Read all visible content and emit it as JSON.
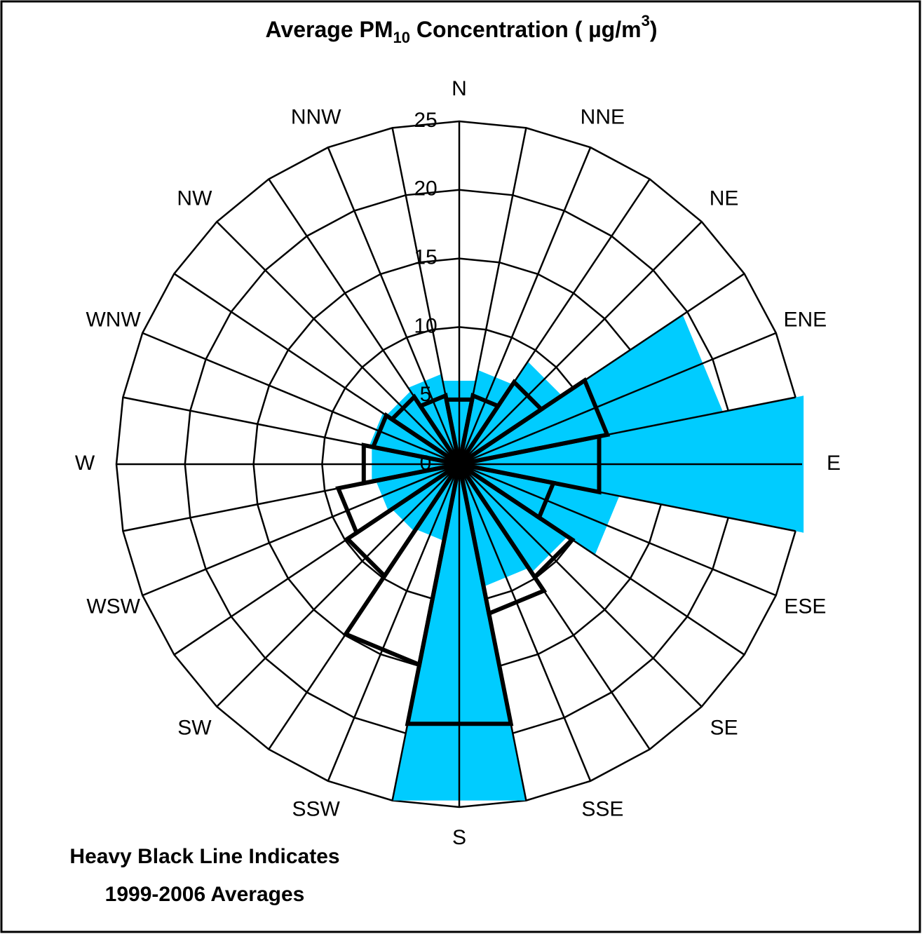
{
  "chart_data": {
    "type": "rose",
    "title": [
      "Average PM",
      "10",
      " Concentration ( µg/m",
      "3",
      ")"
    ],
    "annotation": [
      "Heavy Black Line Indicates",
      "1999-2006 Averages"
    ],
    "categories": [
      "N",
      "NNE",
      "NE",
      "ENE",
      "E",
      "ESE",
      "SE",
      "SSE",
      "S",
      "SSW",
      "SW",
      "WSW",
      "W",
      "WNW",
      "NW",
      "NNW"
    ],
    "series": [
      {
        "color": "#00ccff",
        "fill": true,
        "values": [
          6.2,
          7.0,
          9.0,
          19.6,
          25.6,
          11.9,
          9.5,
          9.1,
          25.0,
          5.7,
          5.9,
          6.2,
          6.5,
          6.7,
          6.4,
          6.7
        ]
      },
      {
        "color": "#000000",
        "fill": false,
        "values": [
          4.8,
          5.1,
          7.2,
          11.0,
          10.4,
          7.0,
          9.9,
          11.1,
          19.3,
          14.9,
          9.8,
          9.0,
          7.1,
          6.4,
          5.9,
          5.1
        ]
      }
    ],
    "rlim": [
      0,
      25
    ],
    "rticks": [
      0,
      5,
      10,
      15,
      20,
      25
    ],
    "grid": true
  }
}
